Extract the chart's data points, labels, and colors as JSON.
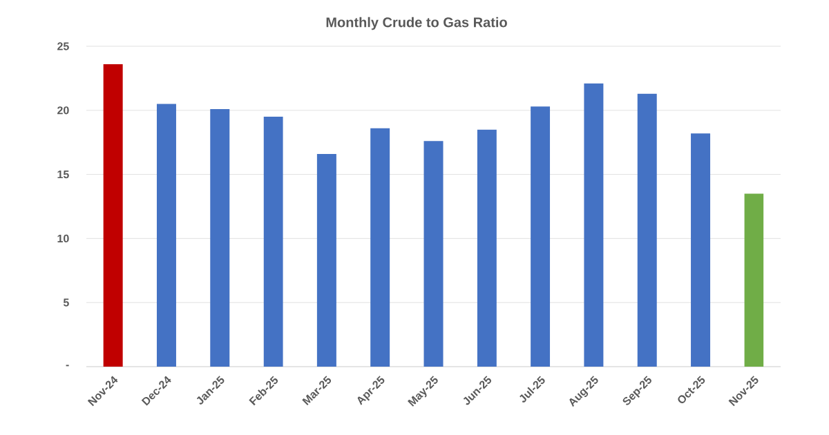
{
  "chart_data": {
    "type": "bar",
    "title": "Monthly Crude to Gas Ratio",
    "categories": [
      "Nov-24",
      "Dec-24",
      "Jan-25",
      "Feb-25",
      "Mar-25",
      "Apr-25",
      "May-25",
      "Jun-25",
      "Jul-25",
      "Aug-25",
      "Sep-25",
      "Oct-25",
      "Nov-25"
    ],
    "values": [
      23.6,
      20.5,
      20.1,
      19.5,
      16.6,
      18.6,
      17.6,
      18.5,
      20.3,
      22.1,
      21.3,
      18.2,
      13.5
    ],
    "colors": [
      "#c00000",
      "#4472c4",
      "#4472c4",
      "#4472c4",
      "#4472c4",
      "#4472c4",
      "#4472c4",
      "#4472c4",
      "#4472c4",
      "#4472c4",
      "#4472c4",
      "#4472c4",
      "#70ad47"
    ],
    "ylim": [
      0,
      25
    ],
    "yticks": [
      {
        "value": 0,
        "label": "-"
      },
      5,
      10,
      15,
      20,
      25
    ],
    "grid": "y"
  }
}
